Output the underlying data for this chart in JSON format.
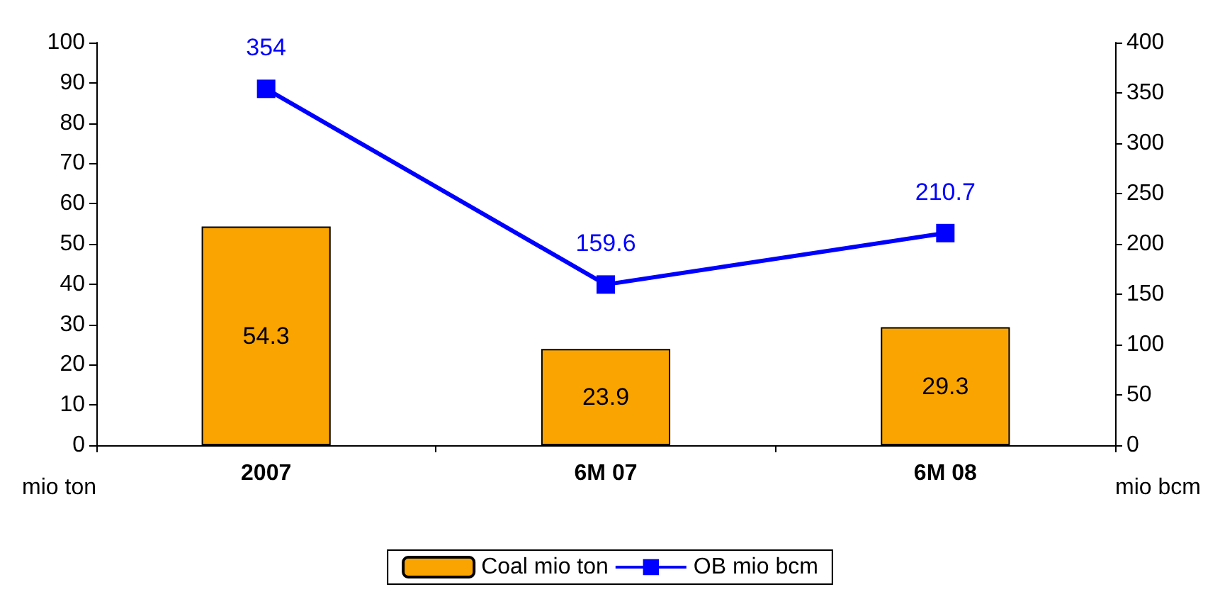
{
  "chart_data": {
    "type": "bar",
    "categories": [
      "2007",
      "6M 07",
      "6M 08"
    ],
    "series": [
      {
        "name": "Coal mio ton",
        "color": "#f9a400",
        "values": [
          54.3,
          23.9,
          29.3
        ]
      },
      {
        "name": "OB mio bcm",
        "type": "line",
        "axis": "y2",
        "color": "#0000ff",
        "marker": "square",
        "values": [
          354,
          159.6,
          210.7
        ]
      }
    ],
    "ylabel": "mio ton",
    "y2label": "mio bcm",
    "ylim": [
      0,
      100
    ],
    "yticks": [
      0,
      10,
      20,
      30,
      40,
      50,
      60,
      70,
      80,
      90,
      100
    ],
    "y2lim": [
      0,
      400
    ],
    "y2ticks": [
      0,
      50,
      100,
      150,
      200,
      250,
      300,
      350,
      400
    ],
    "grid": false,
    "legend": "bottom",
    "data_labels": true
  }
}
